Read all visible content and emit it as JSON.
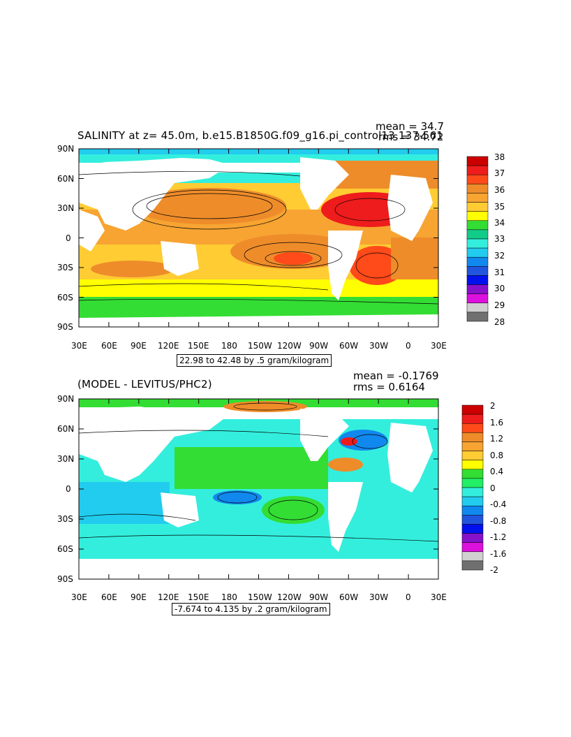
{
  "panels": [
    {
      "id": "top",
      "title": "SALINITY at z=   45.0m, b.e15.B1850G.f09_g16.pi_control13 137-561",
      "mean_text": "mean = 34.7",
      "rms_text": "rms = 34.72",
      "range_text": "22.98 to 42.48 by .5 gram/kilogram",
      "lat_labels": [
        "90N",
        "60N",
        "30N",
        "0",
        "30S",
        "60S",
        "90S"
      ],
      "lon_labels": [
        "30E",
        "60E",
        "90E",
        "120E",
        "150E",
        "180",
        "150W",
        "120W",
        "90W",
        "60W",
        "30W",
        "0",
        "30E"
      ],
      "colorbar": {
        "labels": [
          "38",
          "37",
          "36",
          "35",
          "34",
          "33",
          "32",
          "31",
          "30",
          "29",
          "28"
        ],
        "colors": [
          "#cc0000",
          "#ee1c1c",
          "#ff4a1a",
          "#ee8c2a",
          "#f7a432",
          "#ffcc33",
          "#ffff00",
          "#33dd33",
          "#11cc88",
          "#33eedd",
          "#22ccee",
          "#1188ee",
          "#2255dd",
          "#0011ee",
          "#8811cc",
          "#dd11dd",
          "#d0d0d0",
          "#707070"
        ]
      }
    },
    {
      "id": "bottom",
      "title": "(MODEL - LEVITUS/PHC2)",
      "mean_text": "mean = -0.1769",
      "rms_text": "rms = 0.6164",
      "range_text": "-7.674 to 4.135 by .2 gram/kilogram",
      "lat_labels": [
        "90N",
        "60N",
        "30N",
        "0",
        "30S",
        "60S",
        "90S"
      ],
      "lon_labels": [
        "30E",
        "60E",
        "90E",
        "120E",
        "150E",
        "180",
        "150W",
        "120W",
        "90W",
        "60W",
        "30W",
        "0",
        "30E"
      ],
      "colorbar": {
        "labels": [
          "2",
          "1.6",
          "1.2",
          "0.8",
          "0.4",
          "0",
          "-0.4",
          "-0.8",
          "-1.2",
          "-1.6",
          "-2"
        ],
        "colors": [
          "#cc0000",
          "#ee1c1c",
          "#ff4a1a",
          "#ee8c2a",
          "#f7a432",
          "#ffcc33",
          "#ffff00",
          "#33dd33",
          "#22ee66",
          "#33eedd",
          "#22ccee",
          "#1188ee",
          "#2255dd",
          "#0011ee",
          "#8811cc",
          "#dd11dd",
          "#d0d0d0",
          "#707070"
        ]
      }
    }
  ]
}
